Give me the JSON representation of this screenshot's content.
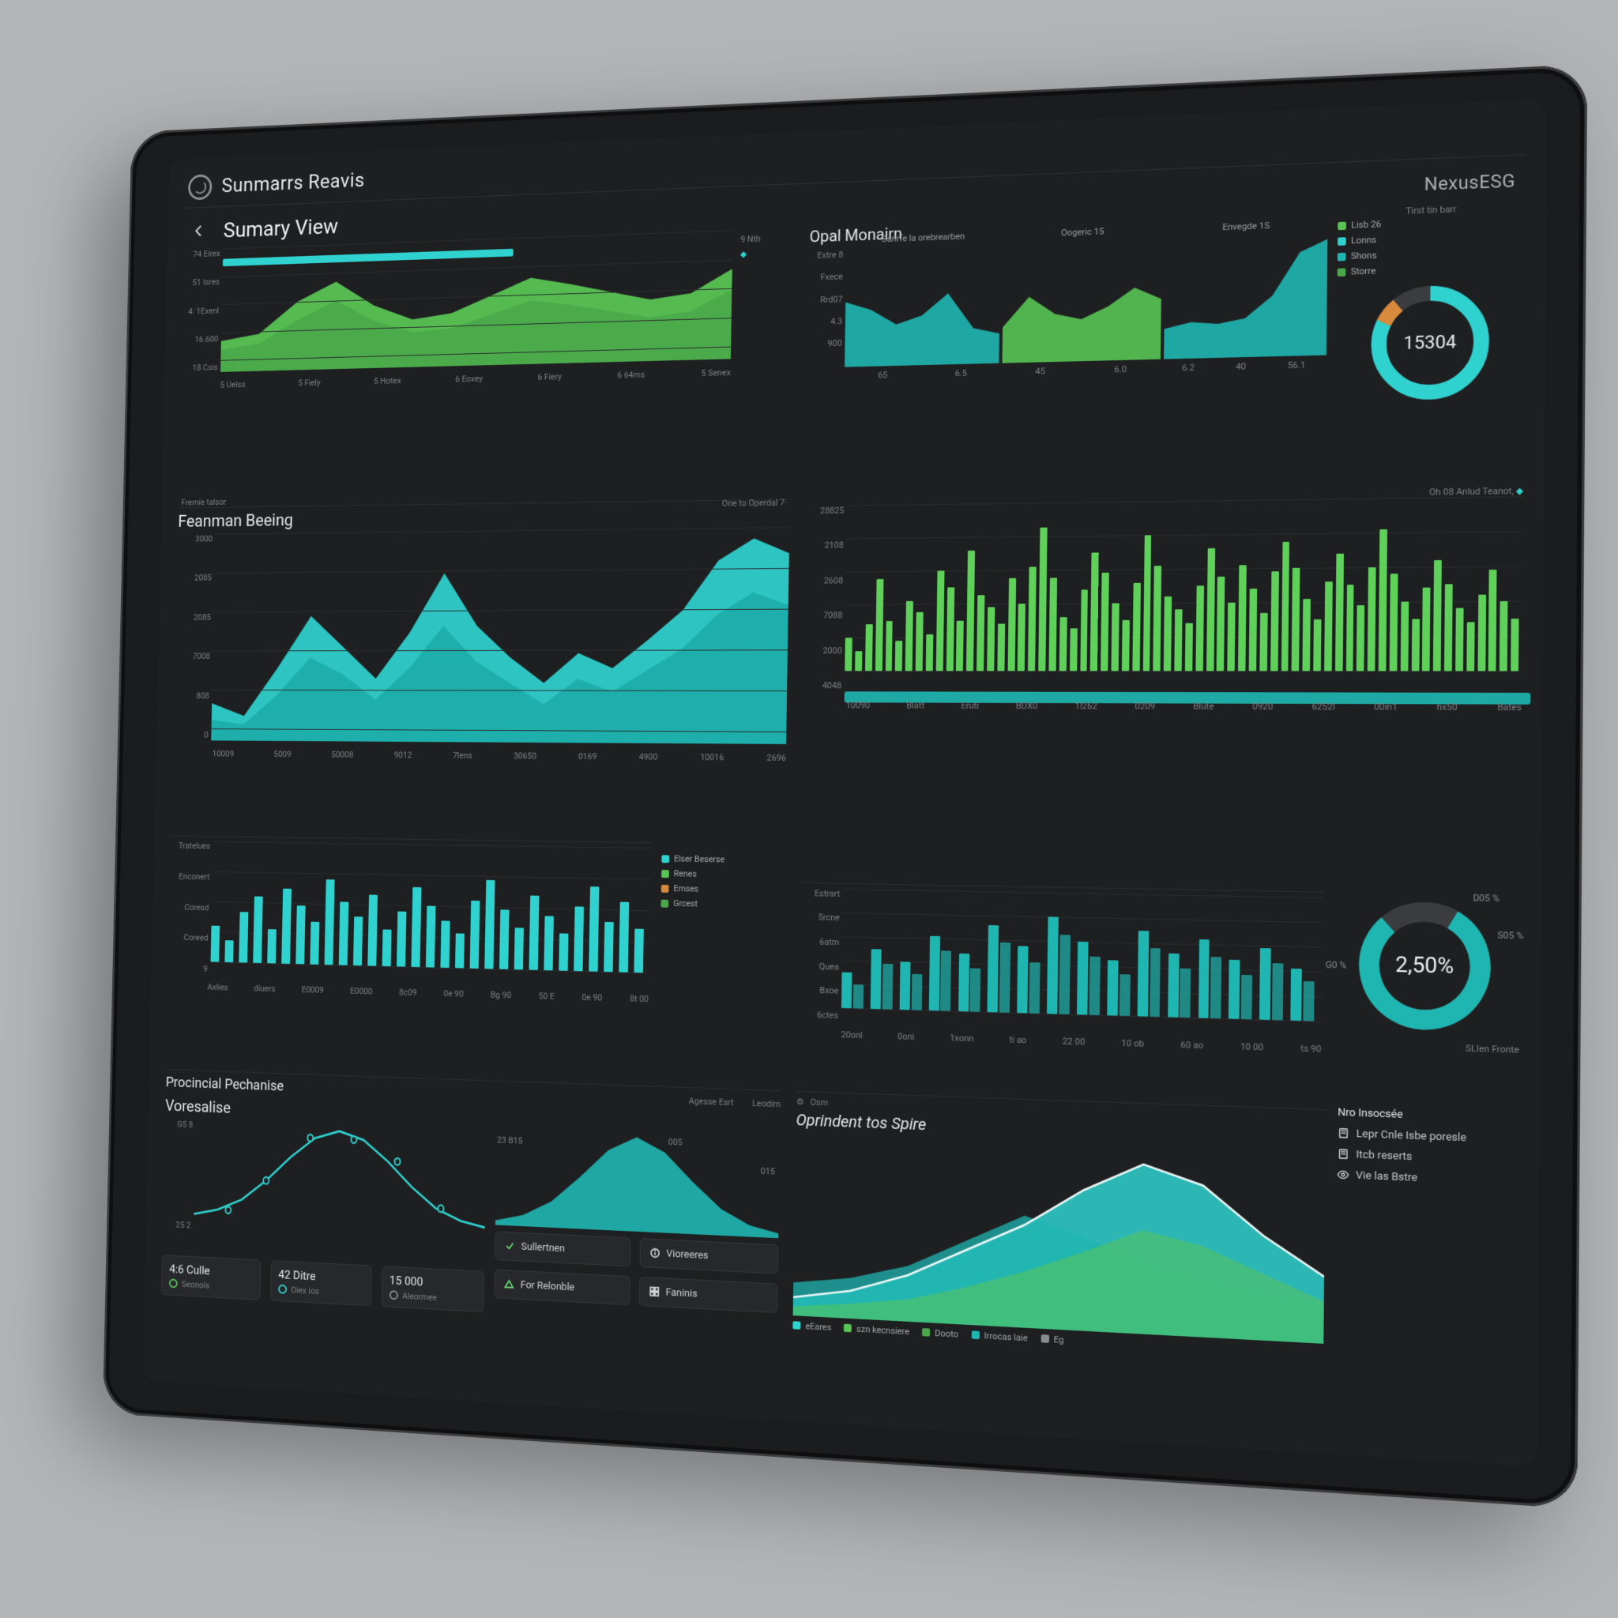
{
  "app_title": "Sunmarrs Reavis",
  "header": {
    "view_title": "Sumary View",
    "brand": "NexusESG"
  },
  "colors": {
    "bg": "#1e1f21",
    "text": "#d5d7d9",
    "muted": "#8a8d90",
    "grid": "#2a2c2e",
    "border": "#2e3033",
    "green": "#58c454",
    "green2": "#4aa84a",
    "green_bar": "#5fd15a",
    "cyan": "#2fd2cf",
    "cyan2": "#1aa8a4",
    "cyan3": "#36e1dc",
    "teal": "#1fb6b1",
    "accent_orange": "#d78a3c"
  },
  "row1_left": {
    "type": "area",
    "yticks": [
      "74 Eirex",
      "51 Isres",
      "4: 1Exenl",
      "16.600",
      "18 Csis"
    ],
    "xticks": [
      "5 Uelss",
      "5 Fiely",
      "5 Hotex",
      "6 Eoxey",
      "6 Fiery",
      "6 64ms",
      "5 Senex"
    ],
    "bar_top_label": "",
    "bar_color": "#2fd2cf",
    "area_color": "#58c454",
    "area_color2": "#4aa84a",
    "series": [
      0.25,
      0.3,
      0.55,
      0.7,
      0.5,
      0.38,
      0.42,
      0.55,
      0.68,
      0.62,
      0.55,
      0.48,
      0.52,
      0.7
    ],
    "series2": [
      0.18,
      0.22,
      0.4,
      0.55,
      0.38,
      0.28,
      0.3,
      0.4,
      0.5,
      0.46,
      0.4,
      0.34,
      0.38,
      0.54
    ],
    "side_label": "9 Nth",
    "subcap": "Fremie talsor",
    "rightcap": "One to Operdal   7·"
  },
  "row1_right": {
    "title": "Opal Monairn",
    "yticks": [
      "Extre 8",
      "Fxece",
      "Rrd07",
      "4.3",
      "900"
    ],
    "captions": [
      "Sarirfe la orebrearben",
      "Oogeric 15",
      "Envegde 1S"
    ],
    "xticks": [
      [
        "65",
        "6.5"
      ],
      [
        "45",
        "6.0"
      ],
      [
        "6.2",
        "40",
        "56.1"
      ]
    ],
    "area_teal": "#1fb6b1",
    "area_green": "#58c454",
    "s1": [
      0.55,
      0.48,
      0.35,
      0.42,
      0.6,
      0.3,
      0.25
    ],
    "s2": [
      0.3,
      0.55,
      0.4,
      0.35,
      0.45,
      0.6,
      0.5
    ],
    "s3": [
      0.25,
      0.3,
      0.28,
      0.32,
      0.5,
      0.85,
      0.95
    ],
    "legend": [
      {
        "c": "#58c454",
        "t": "Lisb 26"
      },
      {
        "c": "#2fd2cf",
        "t": "Lonns"
      },
      {
        "c": "#1fb6b1",
        "t": "Shons"
      },
      {
        "c": "#4aa84a",
        "t": "Storre"
      }
    ],
    "donut": {
      "value": "15304",
      "label_above": "Tirst tin barr",
      "arc_pct": 0.82,
      "ring": "#2fd2cf",
      "ring_bg": "#3a3c3f",
      "accent": "#d78a3c"
    }
  },
  "row2_left": {
    "title": "Feanman Beeing",
    "type": "area",
    "yticks": [
      "3000",
      "2085",
      "2085",
      "7008",
      "808",
      "0"
    ],
    "xticks": [
      "10009",
      "5009",
      "50008",
      "9012",
      "7lens",
      "30650",
      "0169",
      "4900",
      "10016",
      "2696"
    ],
    "series": [
      0.18,
      0.12,
      0.35,
      0.6,
      0.45,
      0.3,
      0.52,
      0.8,
      0.55,
      0.4,
      0.28,
      0.42,
      0.35,
      0.48,
      0.62,
      0.85,
      0.95,
      0.88
    ],
    "series2": [
      0.1,
      0.08,
      0.22,
      0.4,
      0.32,
      0.2,
      0.35,
      0.55,
      0.38,
      0.28,
      0.18,
      0.3,
      0.24,
      0.34,
      0.44,
      0.6,
      0.7,
      0.64
    ],
    "fill": "#2fd2cf",
    "fill2": "#1aa8a4"
  },
  "row2_right": {
    "caption_right": "Oh 08 Anlud Teanot,",
    "diamond_color": "#2fd2cf",
    "type": "bar",
    "yticks": [
      "28825",
      "2108",
      "2608",
      "7088",
      "2000",
      "4048"
    ],
    "bar_color": "#5fd15a",
    "n_bars": 64,
    "heights": [
      0.2,
      0.12,
      0.28,
      0.55,
      0.3,
      0.18,
      0.42,
      0.35,
      0.22,
      0.6,
      0.5,
      0.3,
      0.72,
      0.45,
      0.38,
      0.28,
      0.55,
      0.4,
      0.62,
      0.85,
      0.55,
      0.32,
      0.25,
      0.48,
      0.7,
      0.58,
      0.4,
      0.3,
      0.52,
      0.8,
      0.62,
      0.44,
      0.36,
      0.28,
      0.5,
      0.72,
      0.55,
      0.4,
      0.62,
      0.48,
      0.34,
      0.58,
      0.75,
      0.6,
      0.42,
      0.3,
      0.52,
      0.68,
      0.5,
      0.38,
      0.6,
      0.82,
      0.56,
      0.4,
      0.3,
      0.48,
      0.64,
      0.5,
      0.36,
      0.28,
      0.44,
      0.58,
      0.4,
      0.3
    ],
    "xticks": [
      "10090",
      "Blatt",
      "Eruti",
      "BDX0",
      "1l262",
      "0209",
      "Blute",
      "0920",
      "6252l",
      "00in1",
      "hx50",
      "Bates"
    ]
  },
  "row3_left": {
    "type": "bar",
    "yticks": [
      "Tratelues",
      "Enconert",
      "Coresd",
      "Coreed",
      "9"
    ],
    "bar_color": "#2fd2cf",
    "heights": [
      0.3,
      0.18,
      0.42,
      0.55,
      0.28,
      0.62,
      0.48,
      0.35,
      0.7,
      0.52,
      0.4,
      0.58,
      0.3,
      0.45,
      0.65,
      0.5,
      0.38,
      0.28,
      0.55,
      0.72,
      0.48,
      0.34,
      0.6,
      0.44,
      0.3,
      0.52,
      0.68,
      0.4,
      0.56,
      0.35
    ],
    "xticks": [
      "Axlies",
      "diuers",
      "E0009",
      "E0000",
      "8c09",
      "0e 90",
      "Bg 90",
      "50 E",
      "0e 90",
      "8t 00"
    ],
    "legend": [
      {
        "c": "#2fd2cf",
        "t": "Elser Beserse"
      },
      {
        "c": "#58c454",
        "t": "Renes"
      },
      {
        "c": "#d78a3c",
        "t": "Emses"
      },
      {
        "c": "#4aa84a",
        "t": "Grcest"
      }
    ]
  },
  "row3_right": {
    "type": "bar",
    "yticks": [
      "Estrart",
      "5rcne",
      "6atm",
      "Quea",
      "Bxoe",
      "6ctes"
    ],
    "bar_color": "#1fb6b1",
    "pairs": 16,
    "h1": [
      0.3,
      0.5,
      0.4,
      0.62,
      0.48,
      0.72,
      0.55,
      0.8,
      0.6,
      0.45,
      0.7,
      0.52,
      0.64,
      0.48,
      0.58,
      0.42
    ],
    "h2": [
      0.2,
      0.38,
      0.3,
      0.5,
      0.36,
      0.58,
      0.42,
      0.65,
      0.48,
      0.34,
      0.56,
      0.4,
      0.5,
      0.36,
      0.46,
      0.32
    ],
    "xticks": [
      "20onl",
      "0oni",
      "1xonn",
      "ti ao",
      "22 00",
      "10 ob",
      "60 ao",
      "10 00",
      "ts 90"
    ],
    "donut": {
      "value": "2,50%",
      "ring": "#1fb6b1",
      "ring_bg": "#3a3c3f",
      "arc_pct": 0.8,
      "label_tl": "D05 %",
      "label_tr": "S05 %",
      "label_l": "G0 %"
    },
    "footer_right": "SLIen Fronte"
  },
  "row4_left": {
    "title_left": "Procincial Pechanise",
    "title_right_a": "Agesse Esrt",
    "title_right_b": "Leodirn",
    "subtitle": "Voresalise",
    "yticks": [
      "G5 8",
      "25 2"
    ],
    "curve_color": "#2fd2cf",
    "curve": [
      0.15,
      0.2,
      0.3,
      0.48,
      0.7,
      0.88,
      0.95,
      0.88,
      0.7,
      0.48,
      0.3,
      0.2,
      0.15
    ],
    "markers_x": [
      0.12,
      0.25,
      0.4,
      0.55,
      0.7,
      0.85
    ],
    "bell_labels": {
      "a": "23 B15",
      "b": "005",
      "c": "015"
    },
    "bell_color": "#1fb6b1",
    "pills": [
      {
        "big": "4:6 Culle",
        "small": "Seonols",
        "c": "#58c454"
      },
      {
        "big": "42 Ditre",
        "small": "Oiex Ios",
        "c": "#2fd2cf"
      },
      {
        "big": "15 000",
        "small": "Aleormee",
        "c": "#8a8d90"
      }
    ],
    "buttons": [
      {
        "t": "Sullertnen",
        "ic": "check"
      },
      {
        "t": "Vioreeres",
        "ic": "info"
      },
      {
        "t": "For Relonble",
        "ic": "tri"
      },
      {
        "t": "Faninis",
        "ic": "grid"
      }
    ]
  },
  "row4_right": {
    "header_icon_label": "Osm",
    "title": "Oprindent tos Spire",
    "colors": [
      "#1fb6b1",
      "#2fd2cf",
      "#58c454"
    ],
    "s1": [
      0.18,
      0.22,
      0.3,
      0.45,
      0.6,
      0.5,
      0.38,
      0.3,
      0.25,
      0.2
    ],
    "s2": [
      0.1,
      0.15,
      0.25,
      0.4,
      0.55,
      0.75,
      0.9,
      0.8,
      0.55,
      0.35
    ],
    "s3": [
      0.05,
      0.08,
      0.12,
      0.2,
      0.3,
      0.42,
      0.55,
      0.48,
      0.35,
      0.22
    ],
    "xticks": [
      "eEares",
      "szn kecnsiere",
      "Dooto",
      "Irrocas laie",
      "Eg"
    ],
    "legend": [
      {
        "c": "#2fd2cf",
        "t": "eEares"
      },
      {
        "c": "#58c454",
        "t": "szn kecnsiere"
      },
      {
        "c": "#4aa84a",
        "t": "Dooto"
      },
      {
        "c": "#1fb6b1",
        "t": "Irrocas laie"
      },
      {
        "c": "#8a8d90",
        "t": "Eg"
      }
    ],
    "side_title": "Nro Insocsée",
    "side_items": [
      {
        "t": "Lepr Cnle Isbe poresle",
        "ic": "doc"
      },
      {
        "t": "Itcb reserts",
        "ic": "doc"
      },
      {
        "t": "Vie las Bstre",
        "ic": "eye"
      }
    ]
  }
}
